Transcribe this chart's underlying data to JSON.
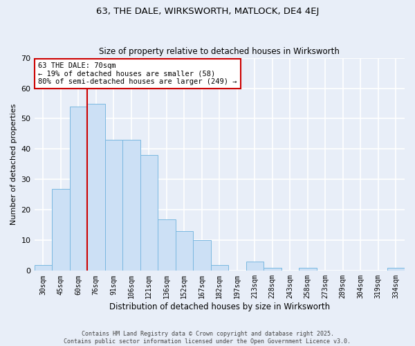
{
  "title": "63, THE DALE, WIRKSWORTH, MATLOCK, DE4 4EJ",
  "subtitle": "Size of property relative to detached houses in Wirksworth",
  "xlabel": "Distribution of detached houses by size in Wirksworth",
  "ylabel": "Number of detached properties",
  "bin_labels": [
    "30sqm",
    "45sqm",
    "60sqm",
    "76sqm",
    "91sqm",
    "106sqm",
    "121sqm",
    "136sqm",
    "152sqm",
    "167sqm",
    "182sqm",
    "197sqm",
    "213sqm",
    "228sqm",
    "243sqm",
    "258sqm",
    "273sqm",
    "289sqm",
    "304sqm",
    "319sqm",
    "334sqm"
  ],
  "bar_values": [
    2,
    27,
    54,
    55,
    43,
    43,
    38,
    17,
    13,
    10,
    2,
    0,
    3,
    1,
    0,
    1,
    0,
    0,
    0,
    0,
    1
  ],
  "bar_color": "#cce0f5",
  "bar_edge_color": "#7ab8e0",
  "vline_x": 3.0,
  "vline_color": "#cc0000",
  "ylim": [
    0,
    70
  ],
  "yticks": [
    0,
    10,
    20,
    30,
    40,
    50,
    60,
    70
  ],
  "annotation_text": "63 THE DALE: 70sqm\n← 19% of detached houses are smaller (58)\n80% of semi-detached houses are larger (249) →",
  "annotation_box_color": "#ffffff",
  "annotation_box_edgecolor": "#cc0000",
  "footer1": "Contains HM Land Registry data © Crown copyright and database right 2025.",
  "footer2": "Contains public sector information licensed under the Open Government Licence v3.0.",
  "bg_color": "#e8eef8",
  "grid_color": "#ffffff",
  "title_fontsize": 9.5,
  "subtitle_fontsize": 8.5
}
